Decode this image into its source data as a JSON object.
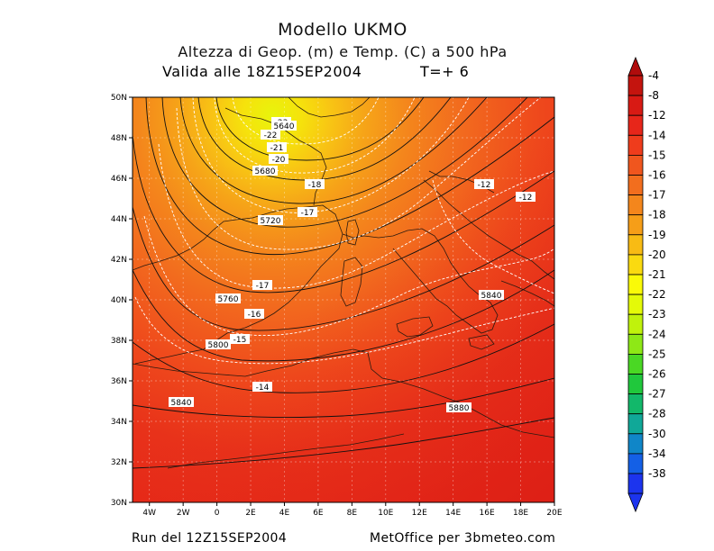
{
  "header": {
    "title": "Modello UKMO",
    "subtitle": "Altezza di Geop. (m) e Temp. (C) a 500 hPa",
    "valid": "Valida alle 18Z15SEP2004",
    "step": "T=+ 6"
  },
  "footer": {
    "run": "Run del 12Z15SEP2004",
    "credit": "MetOffice per 3bmeteo.com"
  },
  "axes": {
    "lat_labels": [
      "50N",
      "48N",
      "46N",
      "44N",
      "42N",
      "40N",
      "38N",
      "36N",
      "34N",
      "32N",
      "30N"
    ],
    "lon_labels": [
      "4W",
      "2W",
      "0",
      "2E",
      "4E",
      "6E",
      "8E",
      "10E",
      "12E",
      "14E",
      "16E",
      "18E",
      "20E"
    ]
  },
  "legend": {
    "labels": [
      "-4",
      "-8",
      "-12",
      "-14",
      "-15",
      "-16",
      "-17",
      "-18",
      "-19",
      "-20",
      "-21",
      "-22",
      "-23",
      "-24",
      "-25",
      "-26",
      "-27",
      "-28",
      "-30",
      "-34",
      "-38"
    ],
    "colors": [
      "#c4140e",
      "#d81a14",
      "#e7261a",
      "#ef3c1c",
      "#f0561e",
      "#f26e1e",
      "#f4861c",
      "#f69e18",
      "#f8bb14",
      "#fada10",
      "#fafa08",
      "#e4fa08",
      "#c0f20c",
      "#8ee816",
      "#4ad824",
      "#20c83c",
      "#12b86a",
      "#10a898",
      "#1086c8",
      "#1460e6",
      "#1c34ee"
    ]
  },
  "temperature_labels": [
    {
      "text": "-23"
    },
    {
      "text": "-22"
    },
    {
      "text": "-21"
    },
    {
      "text": "-20"
    },
    {
      "text": "-18"
    },
    {
      "text": "-17"
    },
    {
      "text": "-17"
    },
    {
      "text": "-16"
    },
    {
      "text": "-15"
    },
    {
      "text": "-14"
    },
    {
      "text": "-12"
    },
    {
      "text": "-12"
    }
  ],
  "height_labels": [
    {
      "text": "5640"
    },
    {
      "text": "5680"
    },
    {
      "text": "5720"
    },
    {
      "text": "5760"
    },
    {
      "text": "5800"
    },
    {
      "text": "5840"
    },
    {
      "text": "5840"
    },
    {
      "text": "5880"
    }
  ]
}
